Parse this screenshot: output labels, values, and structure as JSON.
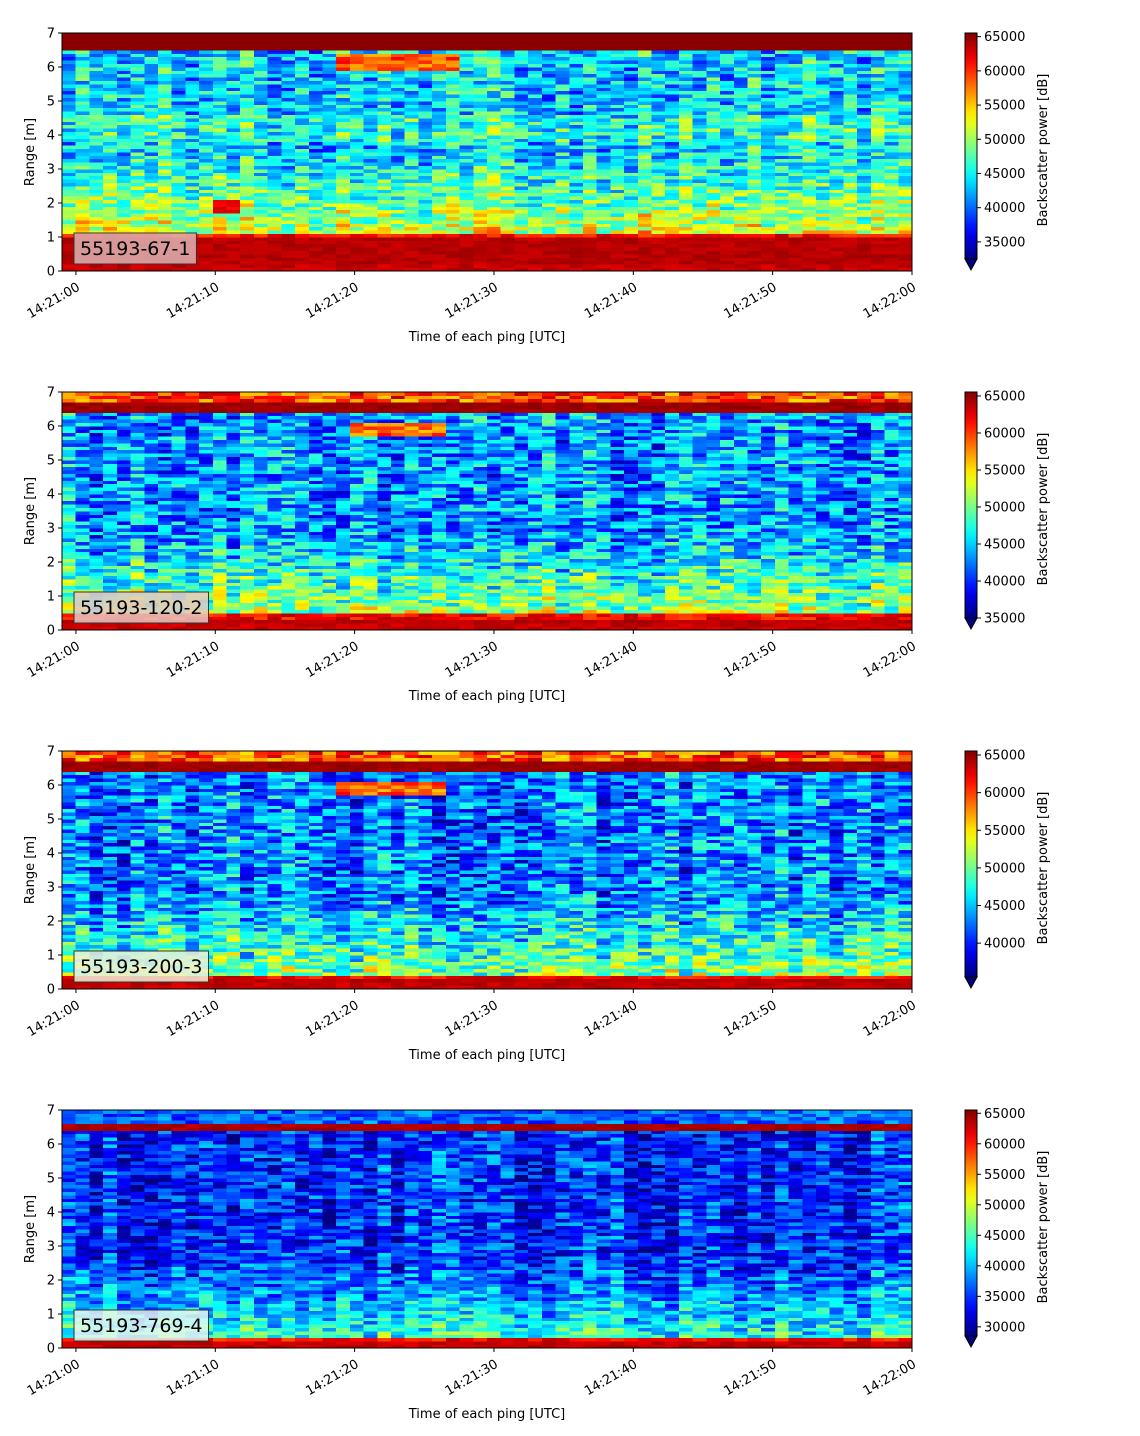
{
  "chart_data": [
    {
      "type": "heatmap",
      "label": "55193-67-1",
      "xlabel": "Time of each ping [UTC]",
      "ylabel": "Range [m]",
      "x_ticks": [
        "14:21:00",
        "14:21:10",
        "14:21:20",
        "14:21:30",
        "14:21:40",
        "14:21:50",
        "14:22:00"
      ],
      "y_ticks": [
        "0",
        "1",
        "2",
        "3",
        "4",
        "5",
        "6",
        "7"
      ],
      "xlim": [
        "14:20:59",
        "14:22:00"
      ],
      "ylim": [
        0,
        7
      ],
      "colorbar": {
        "label": "Backscatter power [dB]",
        "range": [
          32500,
          65535
        ],
        "ticks": [
          "35000",
          "40000",
          "45000",
          "50000",
          "55000",
          "60000",
          "65000"
        ],
        "extend": "min"
      },
      "colormap": "jet",
      "features": {
        "bottom_band_max_m": 1.1,
        "top_band_min_m": 6.5,
        "patch": {
          "t_start": "14:21:19",
          "t_end": "14:21:28",
          "range_m": [
            5.9,
            6.4
          ]
        },
        "hotspot": {
          "t_start": "14:21:10",
          "t_end": "14:21:12",
          "range_m": [
            1.7,
            2.1
          ]
        }
      }
    },
    {
      "type": "heatmap",
      "label": "55193-120-2",
      "xlabel": "Time of each ping [UTC]",
      "ylabel": "Range [m]",
      "x_ticks": [
        "14:21:00",
        "14:21:10",
        "14:21:20",
        "14:21:30",
        "14:21:40",
        "14:21:50",
        "14:22:00"
      ],
      "y_ticks": [
        "0",
        "1",
        "2",
        "3",
        "4",
        "5",
        "6",
        "7"
      ],
      "xlim": [
        "14:20:59",
        "14:22:00"
      ],
      "ylim": [
        0,
        7
      ],
      "colorbar": {
        "label": "Backscatter power [dB]",
        "range": [
          35000,
          65535
        ],
        "ticks": [
          "35000",
          "40000",
          "45000",
          "50000",
          "55000",
          "60000",
          "65000"
        ],
        "extend": "min"
      },
      "colormap": "jet",
      "features": {
        "bottom_band_max_m": 0.5,
        "top_band_min_m": 6.4,
        "patch": {
          "t_start": "14:21:20",
          "t_end": "14:21:27",
          "range_m": [
            5.7,
            6.1
          ]
        }
      }
    },
    {
      "type": "heatmap",
      "label": "55193-200-3",
      "xlabel": "Time of each ping [UTC]",
      "ylabel": "Range [m]",
      "x_ticks": [
        "14:21:00",
        "14:21:10",
        "14:21:20",
        "14:21:30",
        "14:21:40",
        "14:21:50",
        "14:22:00"
      ],
      "y_ticks": [
        "0",
        "1",
        "2",
        "3",
        "4",
        "5",
        "6",
        "7"
      ],
      "xlim": [
        "14:20:59",
        "14:22:00"
      ],
      "ylim": [
        0,
        7
      ],
      "colorbar": {
        "label": "Backscatter power [dB]",
        "range": [
          35500,
          65535
        ],
        "ticks": [
          "40000",
          "45000",
          "50000",
          "55000",
          "60000",
          "65000"
        ],
        "extend": "min"
      },
      "colormap": "jet",
      "features": {
        "bottom_band_max_m": 0.4,
        "top_band_min_m": 6.4,
        "patch": {
          "t_start": "14:21:19",
          "t_end": "14:21:27",
          "range_m": [
            5.7,
            6.1
          ]
        }
      }
    },
    {
      "type": "heatmap",
      "label": "55193-769-4",
      "xlabel": "Time of each ping [UTC]",
      "ylabel": "Range [m]",
      "x_ticks": [
        "14:21:00",
        "14:21:10",
        "14:21:20",
        "14:21:30",
        "14:21:40",
        "14:21:50",
        "14:22:00"
      ],
      "y_ticks": [
        "0",
        "1",
        "2",
        "3",
        "4",
        "5",
        "6",
        "7"
      ],
      "xlim": [
        "14:20:59",
        "14:22:00"
      ],
      "ylim": [
        0,
        7
      ],
      "colorbar": {
        "label": "Backscatter power [dB]",
        "range": [
          28500,
          65535
        ],
        "ticks": [
          "30000",
          "35000",
          "40000",
          "45000",
          "50000",
          "55000",
          "60000",
          "65000"
        ],
        "extend": "min"
      },
      "colormap": "jet",
      "features": {
        "bottom_band_max_m": 0.3,
        "top_band_min_m": 6.4
      }
    }
  ]
}
